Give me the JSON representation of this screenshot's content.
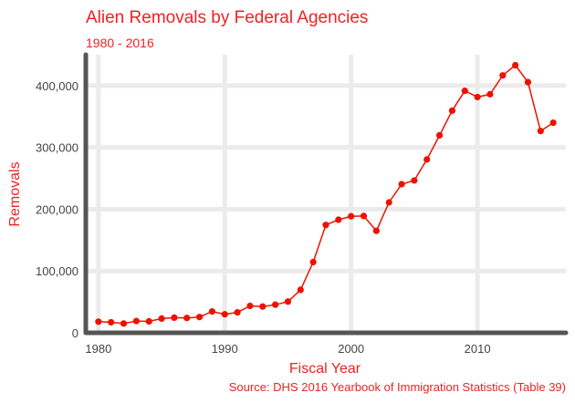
{
  "chart_data": {
    "type": "line",
    "title": "Alien Removals by Federal Agencies",
    "subtitle": "1980 - 2016",
    "xlabel": "Fiscal Year",
    "ylabel": "Removals",
    "caption": "Source: DHS 2016 Yearbook of Immigration Statistics (Table 39)",
    "xlim": [
      1979,
      2017
    ],
    "ylim": [
      0,
      450000
    ],
    "x_ticks": [
      1980,
      1990,
      2000,
      2010
    ],
    "x_tick_labels": [
      "1980",
      "1990",
      "2000",
      "2010"
    ],
    "y_ticks": [
      0,
      100000,
      200000,
      300000,
      400000
    ],
    "y_tick_labels": [
      "0",
      "100,000",
      "200,000",
      "300,000",
      "400,000"
    ],
    "grid": true,
    "colors": {
      "line": "#ee1100",
      "grid": "#ebebeb",
      "axis": "#555555",
      "text": "#ee2222"
    },
    "series": [
      {
        "x": [
          1980,
          1981,
          1982,
          1983,
          1984,
          1985,
          1986,
          1987,
          1988,
          1989,
          1990,
          1991,
          1992,
          1993,
          1994,
          1995,
          1996,
          1997,
          1998,
          1999,
          2000,
          2001,
          2002,
          2003,
          2004,
          2005,
          2006,
          2007,
          2008,
          2009,
          2010,
          2011,
          2012,
          2013,
          2014,
          2015,
          2016
        ],
        "values": [
          18000,
          17000,
          15000,
          19000,
          18500,
          23000,
          24500,
          24000,
          25500,
          34500,
          30000,
          33000,
          43500,
          42500,
          45500,
          50500,
          69500,
          114500,
          174500,
          183000,
          188500,
          189000,
          165000,
          211000,
          240500,
          246500,
          280500,
          319500,
          359500,
          391500,
          381500,
          386000,
          416500,
          433000,
          405500,
          326500,
          340000
        ]
      }
    ]
  }
}
